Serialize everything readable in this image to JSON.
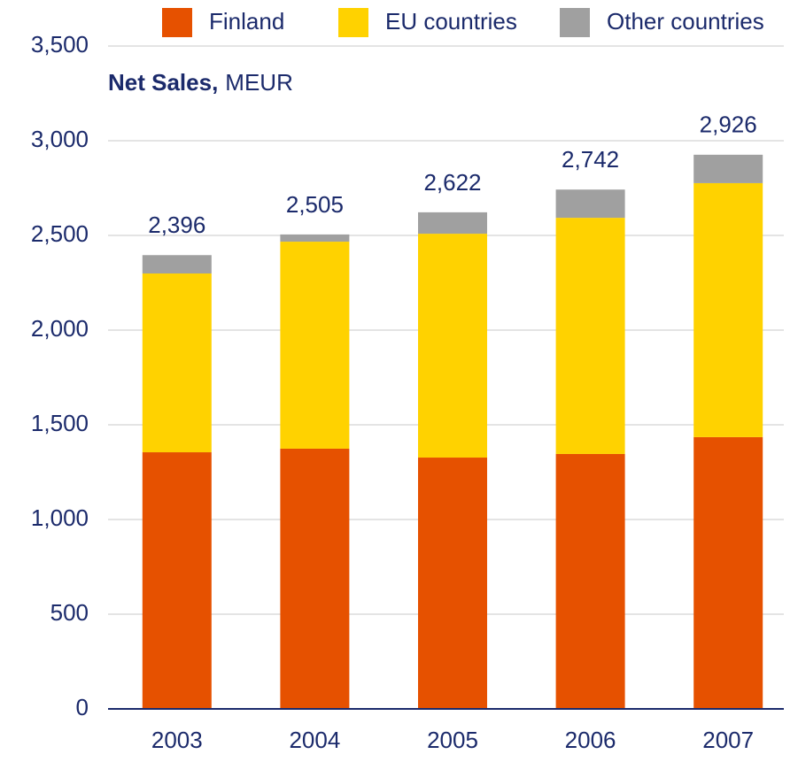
{
  "chart_data": {
    "type": "stacked_bar",
    "title": "Net Sales,",
    "units": "MEUR",
    "categories": [
      "2003",
      "2004",
      "2005",
      "2006",
      "2007"
    ],
    "series": [
      {
        "name": "Finland",
        "color": "#e65100",
        "values": [
          1355,
          1374,
          1327,
          1346,
          1435
        ]
      },
      {
        "name": "EU countries",
        "color": "#ffd200",
        "values": [
          944,
          1093,
          1182,
          1247,
          1341
        ]
      },
      {
        "name": "Other countries",
        "color": "#a0a0a0",
        "values": [
          97,
          38,
          113,
          149,
          150
        ]
      }
    ],
    "totals": {
      "values": [
        2396,
        2505,
        2622,
        2742,
        2926
      ],
      "value_labels": [
        "2,396",
        "2,505",
        "2,622",
        "2,742",
        "2,926"
      ]
    },
    "ylim": [
      0,
      3500
    ],
    "yticks": [
      0,
      500,
      {
        "value": 1000,
        "label": "1,000"
      },
      {
        "value": 1500,
        "label": "1,500"
      },
      {
        "value": 2000,
        "label": "2,000"
      },
      {
        "value": 2500,
        "label": "2,500"
      },
      {
        "value": 3000,
        "label": "3,000"
      },
      {
        "value": 3500,
        "label": "3,500"
      }
    ],
    "grid": true
  }
}
